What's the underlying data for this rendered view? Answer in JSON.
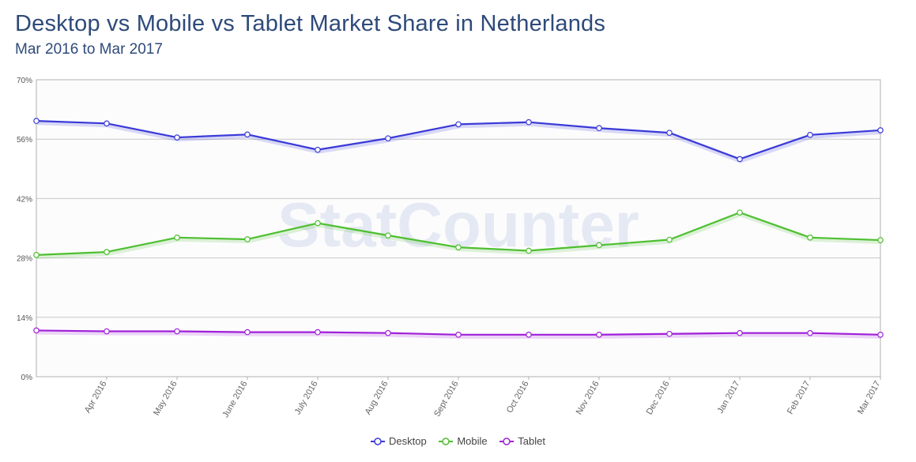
{
  "title": "Desktop vs Mobile vs Tablet Market Share in Netherlands",
  "subtitle": "Mar 2016 to Mar 2017",
  "watermark": "StatCounter",
  "colors": {
    "desktop": "#3a3ad8",
    "mobile": "#4ebf30",
    "tablet": "#a020d8",
    "title": "#2e4a7a",
    "grid": "#c8c8c8"
  },
  "chart_data": {
    "type": "line",
    "x": [
      "Mar 2016",
      "Apr 2016",
      "May 2016",
      "June 2016",
      "July 2016",
      "Aug 2016",
      "Sept 2016",
      "Oct 2016",
      "Nov 2016",
      "Dec 2016",
      "Jan 2017",
      "Feb 2017",
      "Mar 2017"
    ],
    "x_tick_labels": [
      "Apr 2016",
      "May 2016",
      "June 2016",
      "July 2016",
      "Aug 2016",
      "Sept 2016",
      "Oct 2016",
      "Nov 2016",
      "Dec 2016",
      "Jan 2017",
      "Feb 2017",
      "Mar 2017"
    ],
    "y_ticks": [
      "0%",
      "14%",
      "28%",
      "42%",
      "56%",
      "70%"
    ],
    "ylim": [
      0,
      70
    ],
    "grid": true,
    "legend_position": "bottom",
    "series": [
      {
        "name": "Desktop",
        "color": "#3a3ad8",
        "values": [
          60.3,
          59.7,
          56.4,
          57.1,
          53.5,
          56.2,
          59.5,
          60.0,
          58.6,
          57.5,
          51.3,
          57.0,
          58.1
        ]
      },
      {
        "name": "Mobile",
        "color": "#4ebf30",
        "values": [
          28.7,
          29.4,
          32.8,
          32.4,
          36.2,
          33.3,
          30.5,
          29.7,
          31.0,
          32.3,
          38.7,
          32.8,
          32.2
        ]
      },
      {
        "name": "Tablet",
        "color": "#a020d8",
        "values": [
          10.9,
          10.7,
          10.7,
          10.5,
          10.5,
          10.3,
          9.9,
          9.9,
          9.9,
          10.1,
          10.3,
          10.3,
          9.9
        ]
      }
    ]
  }
}
